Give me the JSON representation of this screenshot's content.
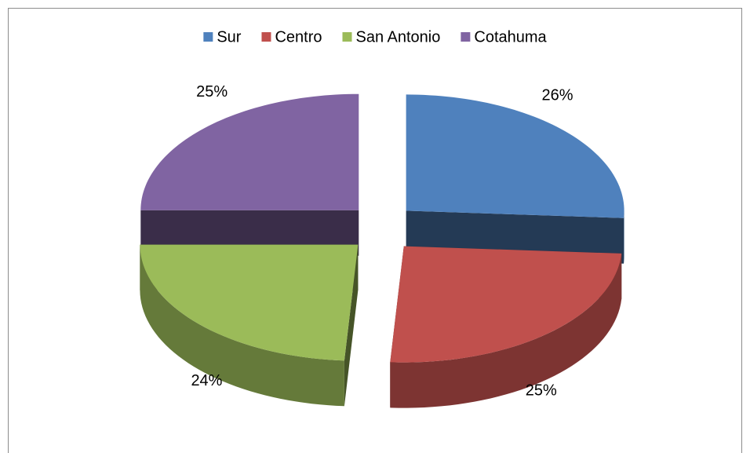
{
  "chart_data": {
    "type": "pie",
    "categories": [
      "Sur",
      "Centro",
      "San Antonio",
      "Cotahuma"
    ],
    "values": [
      26,
      25,
      24,
      25
    ],
    "value_labels": [
      "26%",
      "25%",
      "24%",
      "25%"
    ],
    "colors": [
      "#4f81bd",
      "#c0504d",
      "#9bbb59",
      "#8064a2"
    ],
    "legend": "top"
  }
}
